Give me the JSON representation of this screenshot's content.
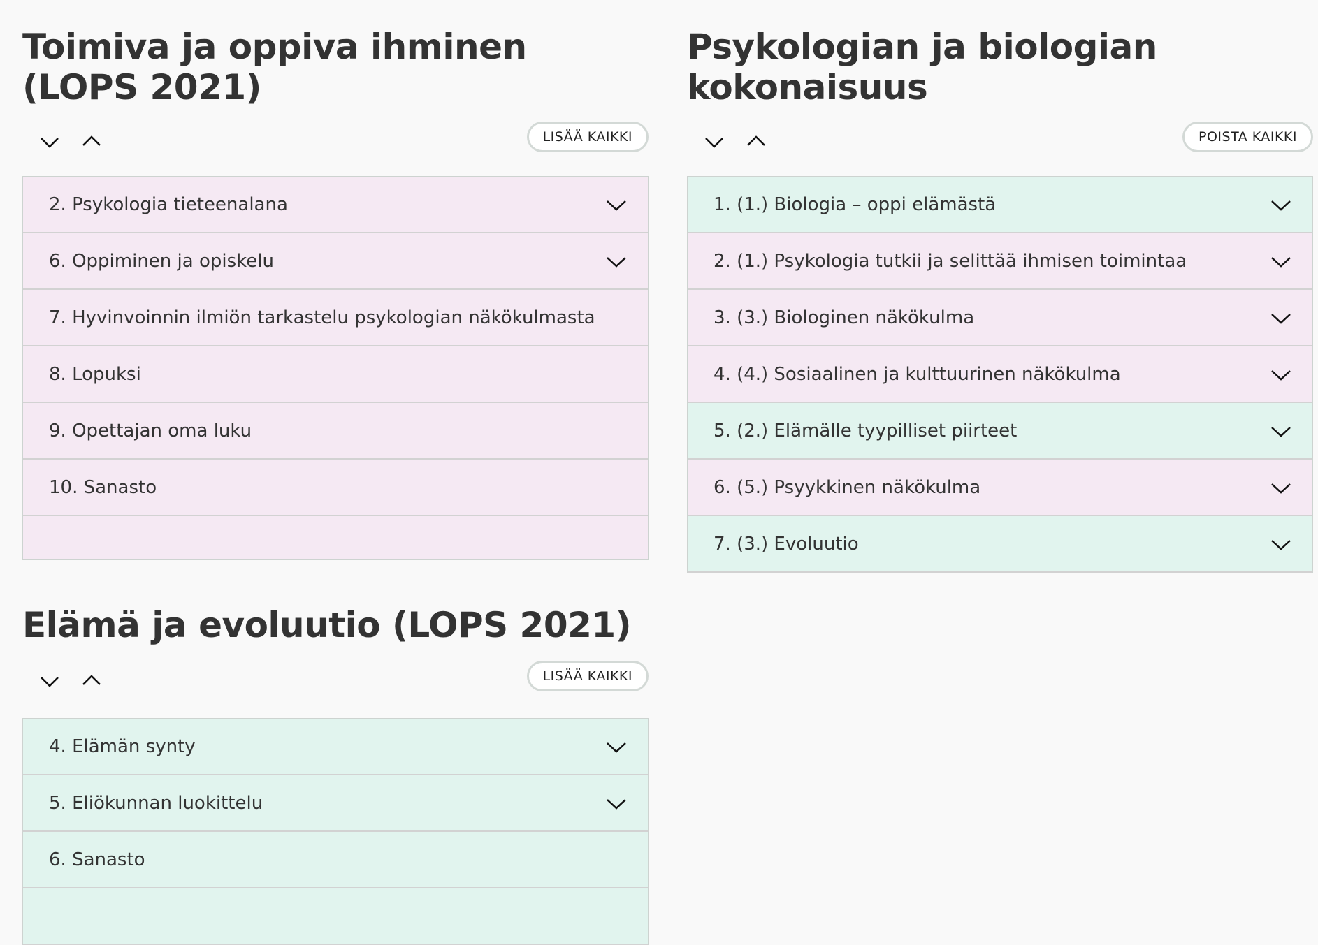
{
  "colors": {
    "pink": "#f5e9f3",
    "green": "#e1f4ee"
  },
  "sections": [
    {
      "title": "Toimiva ja oppiva ihminen (LOPS 2021)",
      "button": "LISÄÄ KAIKKI",
      "items": [
        {
          "label": "2. Psykologia tieteenalana",
          "color": "pink",
          "expandable": true
        },
        {
          "label": "6. Oppiminen ja opiskelu",
          "color": "pink",
          "expandable": true
        },
        {
          "label": "7. Hyvinvoinnin ilmiön tarkastelu psykologian näkökulmasta",
          "color": "pink",
          "expandable": false
        },
        {
          "label": "8. Lopuksi",
          "color": "pink",
          "expandable": false
        },
        {
          "label": "9. Opettajan oma luku",
          "color": "pink",
          "expandable": false
        },
        {
          "label": "10. Sanasto",
          "color": "pink",
          "expandable": false
        }
      ]
    },
    {
      "title": "Psykologian ja biologian kokonaisuus",
      "button": "POISTA KAIKKI",
      "items": [
        {
          "label": "1. (1.) Biologia – oppi elämästä",
          "color": "green",
          "expandable": true
        },
        {
          "label": "2. (1.) Psykologia tutkii ja selittää ihmisen toimintaa",
          "color": "pink",
          "expandable": true
        },
        {
          "label": "3. (3.) Biologinen näkökulma",
          "color": "pink",
          "expandable": true
        },
        {
          "label": "4. (4.) Sosiaalinen ja kulttuurinen näkökulma",
          "color": "pink",
          "expandable": true
        },
        {
          "label": "5. (2.) Elämälle tyypilliset piirteet",
          "color": "green",
          "expandable": true
        },
        {
          "label": "6. (5.) Psyykkinen näkökulma",
          "color": "pink",
          "expandable": true
        },
        {
          "label": "7. (3.) Evoluutio",
          "color": "green",
          "expandable": true
        }
      ]
    },
    {
      "title": "Elämä ja evoluutio (LOPS 2021)",
      "button": "LISÄÄ KAIKKI",
      "items": [
        {
          "label": "4. Elämän synty",
          "color": "green",
          "expandable": true
        },
        {
          "label": "5. Eliökunnan luokittelu",
          "color": "green",
          "expandable": true
        },
        {
          "label": "6. Sanasto",
          "color": "green",
          "expandable": false
        },
        {
          "label": "",
          "color": "green",
          "expandable": false
        }
      ]
    }
  ]
}
